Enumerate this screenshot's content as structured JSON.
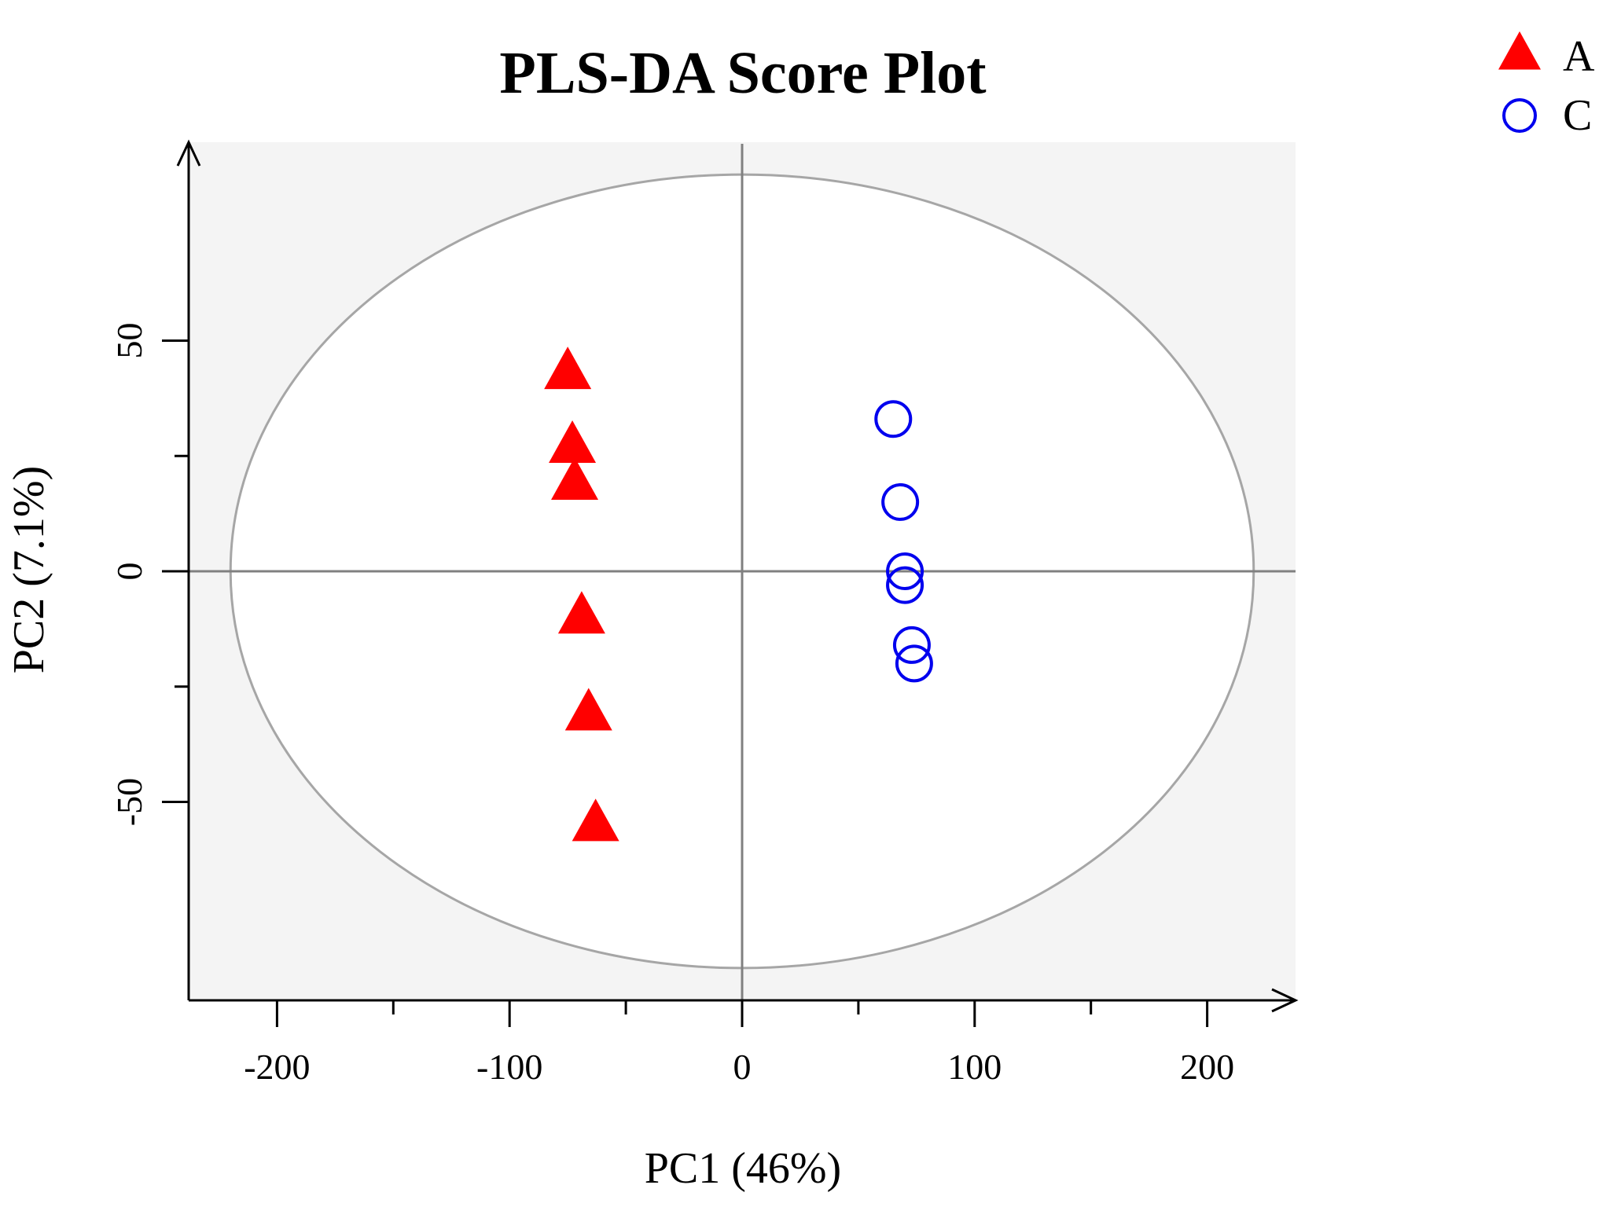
{
  "chart_data": {
    "type": "scatter",
    "title": "PLS-DA Score Plot",
    "xlabel": "PC1 (46%)",
    "ylabel": "PC2 (7.1%)",
    "xlim": [
      -238,
      238
    ],
    "ylim": [
      -93,
      93
    ],
    "x_ticks": [
      -200,
      -100,
      0,
      100,
      200
    ],
    "x_tick_labels": [
      "-200",
      "-100",
      "0",
      "100",
      "200"
    ],
    "y_ticks": [
      -50,
      0,
      50
    ],
    "y_tick_labels": [
      "-50",
      "0",
      "50"
    ],
    "ellipse": {
      "center": [
        0,
        0
      ],
      "rx": 220,
      "ry": 86
    },
    "grid": false,
    "legend_position": "top-right",
    "series": [
      {
        "name": "A",
        "marker": "filled-triangle",
        "color": "#ff0000",
        "points": [
          [
            -75,
            43
          ],
          [
            -73,
            27
          ],
          [
            -72,
            19
          ],
          [
            -69,
            -10
          ],
          [
            -66,
            -31
          ],
          [
            -63,
            -55
          ]
        ]
      },
      {
        "name": "C",
        "marker": "open-circle",
        "color": "#0000ee",
        "points": [
          [
            65,
            33
          ],
          [
            68,
            15
          ],
          [
            70,
            0
          ],
          [
            70,
            -3
          ],
          [
            73,
            -16
          ],
          [
            74,
            -20
          ]
        ]
      }
    ]
  }
}
